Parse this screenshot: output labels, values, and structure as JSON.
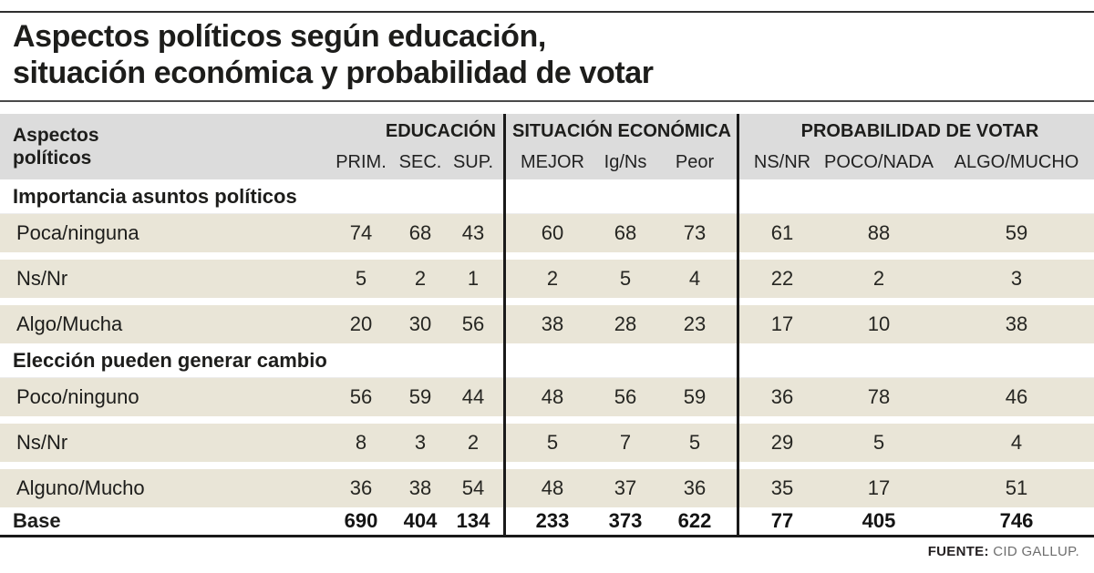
{
  "colors": {
    "ink": "#1d1d1b",
    "rule": "#1a1a1a",
    "header-gray": "#dcdcdc",
    "row-beige": "#e9e5d7",
    "source-gray": "#6e6e6e"
  },
  "chart_data": {
    "type": "table",
    "title": "Aspectos políticos según educación, situación económica y probabilidad de votar",
    "title_lines": [
      "Aspectos políticos según educación,",
      "situación económica y probabilidad de votar"
    ],
    "row_header": {
      "line1": "Aspectos",
      "line2": "políticos"
    },
    "column_groups": [
      {
        "label": "EDUCACIÓN",
        "columns": [
          "PRIM.",
          "SEC.",
          "SUP."
        ]
      },
      {
        "label": "SITUACIÓN ECONÓMICA",
        "columns": [
          "MEJOR",
          "Ig/Ns",
          "Peor"
        ]
      },
      {
        "label": "PROBABILIDAD DE VOTAR",
        "columns": [
          "NS/NR",
          "POCO/NADA",
          "ALGO/MUCHO"
        ]
      }
    ],
    "sections": [
      {
        "header": "Importancia asuntos políticos",
        "rows": [
          {
            "label": "Poca/ninguna",
            "values": [
              74,
              68,
              43,
              60,
              68,
              73,
              61,
              88,
              59
            ]
          },
          {
            "label": "Ns/Nr",
            "values": [
              5,
              2,
              1,
              2,
              5,
              4,
              22,
              2,
              3
            ]
          },
          {
            "label": "Algo/Mucha",
            "values": [
              20,
              30,
              56,
              38,
              28,
              23,
              17,
              10,
              38
            ]
          }
        ]
      },
      {
        "header": "Elección pueden generar cambio",
        "rows": [
          {
            "label": "Poco/ninguno",
            "values": [
              56,
              59,
              44,
              48,
              56,
              59,
              36,
              78,
              46
            ]
          },
          {
            "label": "Ns/Nr",
            "values": [
              8,
              3,
              2,
              5,
              7,
              5,
              29,
              5,
              4
            ]
          },
          {
            "label": "Alguno/Mucho",
            "values": [
              36,
              38,
              54,
              48,
              37,
              36,
              35,
              17,
              51
            ]
          }
        ]
      }
    ],
    "base_row": {
      "label": "Base",
      "values": [
        690,
        404,
        134,
        233,
        373,
        622,
        77,
        405,
        746
      ]
    },
    "source": {
      "label": "FUENTE:",
      "value": "CID GALLUP."
    }
  }
}
